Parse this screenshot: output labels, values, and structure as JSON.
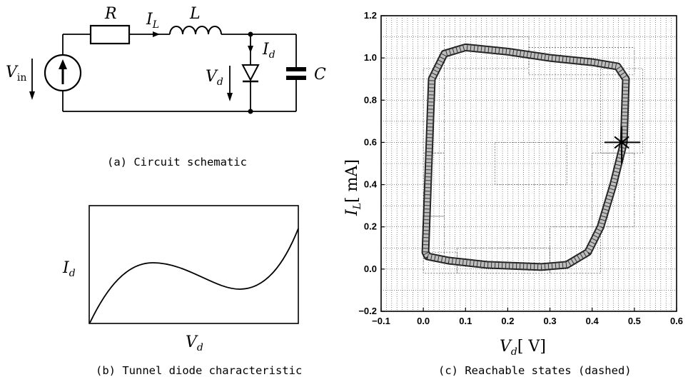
{
  "captions": {
    "a": "(a) Circuit schematic",
    "b": "(b) Tunnel diode characteristic",
    "c": "(c) Reachable states (dashed)"
  },
  "circuit": {
    "resistor": "R",
    "inductor": "L",
    "capacitor": "C",
    "current_main": "I",
    "current_main_sub": "L",
    "current_diode": "I",
    "current_diode_sub": "d",
    "source_voltage": "V",
    "source_voltage_sub": "in",
    "diode_voltage": "V",
    "diode_voltage_sub": "d"
  },
  "characteristic": {
    "ylabel": "I",
    "ylabel_sub": "d",
    "xlabel": "V",
    "xlabel_sub": "d"
  },
  "chart_data": {
    "type": "scatter",
    "xlabel_var": "V",
    "xlabel_sub": "d",
    "xlabel_unit": "[ V]",
    "ylabel_var": "I",
    "ylabel_sub": "L",
    "ylabel_unit": "[ mA]",
    "xlim": [
      -0.1,
      0.6
    ],
    "ylim": [
      -0.2,
      1.2
    ],
    "xticks": [
      "−0.1",
      "0.0",
      "0.1",
      "0.2",
      "0.3",
      "0.4",
      "0.5",
      "0.6"
    ],
    "yticks": [
      "−0.2",
      "0.0",
      "0.2",
      "0.4",
      "0.6",
      "0.8",
      "1.0",
      "1.2"
    ],
    "grid": true,
    "series": [
      {
        "style": "filled band",
        "points": [
          [
            0.005,
            0.08
          ],
          [
            0.02,
            0.9
          ],
          [
            0.05,
            1.02
          ],
          [
            0.1,
            1.05
          ],
          [
            0.2,
            1.03
          ],
          [
            0.3,
            1.0
          ],
          [
            0.4,
            0.98
          ],
          [
            0.46,
            0.96
          ],
          [
            0.48,
            0.9
          ],
          [
            0.475,
            0.6
          ],
          [
            0.45,
            0.4
          ],
          [
            0.42,
            0.2
          ],
          [
            0.39,
            0.08
          ],
          [
            0.34,
            0.02
          ],
          [
            0.28,
            0.01
          ],
          [
            0.15,
            0.02
          ],
          [
            0.06,
            0.04
          ],
          [
            0.01,
            0.06
          ]
        ]
      }
    ]
  }
}
